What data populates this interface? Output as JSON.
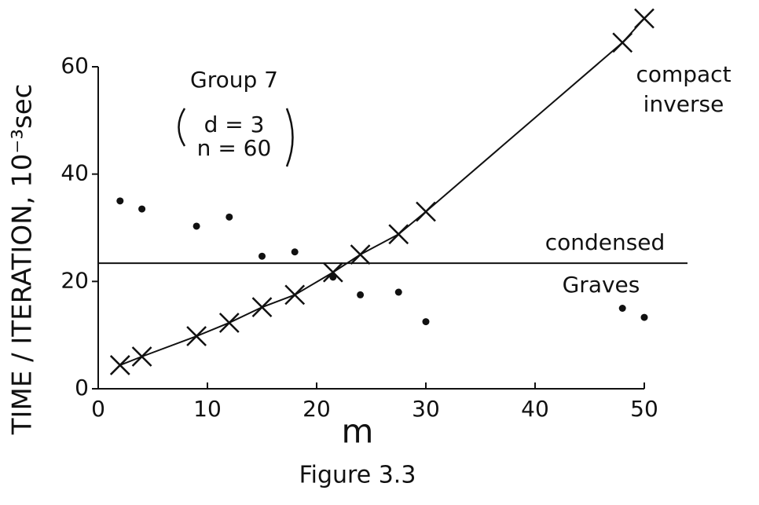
{
  "chart_data": {
    "type": "scatter",
    "title": "Figure 3.3",
    "xlabel": "m",
    "ylabel": "TIME / ITERATION, 10⁻³sec",
    "xlim": [
      0,
      50
    ],
    "ylim": [
      0,
      60
    ],
    "xticks": [
      0,
      10,
      20,
      30,
      40,
      50
    ],
    "yticks": [
      0,
      20,
      40,
      60
    ],
    "x": [
      2,
      4,
      9,
      12,
      15,
      18,
      21.5,
      24,
      27.5,
      30,
      48,
      50
    ],
    "series": [
      {
        "name": "compact inverse",
        "color": "#111111",
        "marker": "x",
        "line": true,
        "values": [
          4.4,
          6,
          9.8,
          12.3,
          15.2,
          17.5,
          21.7,
          25,
          28.8,
          33,
          64.5,
          69
        ]
      },
      {
        "name": "Graves",
        "color": "#111111",
        "marker": "dot",
        "line": false,
        "values": [
          35,
          33.5,
          30.3,
          32,
          24.7,
          25.5,
          20.8,
          17.5,
          18,
          12.5,
          15,
          13.3
        ]
      }
    ],
    "reference_line": {
      "label": "condensed",
      "value": 23.4
    },
    "annotations": [
      "Group 7",
      "d = 3",
      "n = 60"
    ]
  }
}
